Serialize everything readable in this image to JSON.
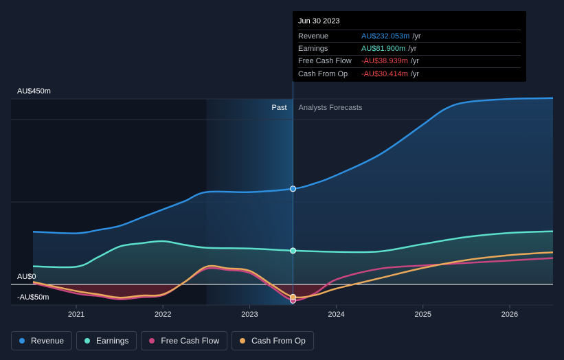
{
  "colors": {
    "revenue": "#2d8fe0",
    "earnings": "#5ce0cc",
    "free_cash_flow": "#c9457f",
    "cash_from_op": "#e9a85a",
    "negative": "#f04a4a"
  },
  "tooltip": {
    "date": "Jun 30 2023",
    "rows": [
      {
        "name": "Revenue",
        "value": "AU$232.053m",
        "unit": "/yr",
        "color": "#2d8fe0"
      },
      {
        "name": "Earnings",
        "value": "AU$81.900m",
        "unit": "/yr",
        "color": "#5ce0cc"
      },
      {
        "name": "Free Cash Flow",
        "value": "-AU$38.939m",
        "unit": "/yr",
        "color": "#f04a4a"
      },
      {
        "name": "Cash From Op",
        "value": "-AU$30.414m",
        "unit": "/yr",
        "color": "#f04a4a"
      }
    ]
  },
  "legend": [
    {
      "label": "Revenue",
      "color": "#2d8fe0"
    },
    {
      "label": "Earnings",
      "color": "#5ce0cc"
    },
    {
      "label": "Free Cash Flow",
      "color": "#c9457f"
    },
    {
      "label": "Cash From Op",
      "color": "#e9a85a"
    }
  ],
  "chart_data": {
    "type": "line",
    "title": "",
    "xlabel": "",
    "ylabel": "",
    "y_unit": "AU$ m",
    "ylim": [
      -50,
      450
    ],
    "xlim": [
      2020.5,
      2026.5
    ],
    "y_tick_labels": [
      {
        "value": 450,
        "label": "AU$450m"
      },
      {
        "value": 0,
        "label": "AU$0"
      },
      {
        "value": -50,
        "label": "-AU$50m"
      }
    ],
    "x_ticks": [
      {
        "value": 2021,
        "label": "2021"
      },
      {
        "value": 2022,
        "label": "2022"
      },
      {
        "value": 2023,
        "label": "2023"
      },
      {
        "value": 2024,
        "label": "2024"
      },
      {
        "value": 2025,
        "label": "2025"
      },
      {
        "value": 2026,
        "label": "2026"
      }
    ],
    "past_label": "Past",
    "forecast_label": "Analysts Forecasts",
    "past_highlight_start": 2022.5,
    "divider_x": 2023.5,
    "series": [
      {
        "name": "Revenue",
        "key": "revenue",
        "x": [
          2020.5,
          2021.0,
          2021.25,
          2021.5,
          2021.75,
          2022.0,
          2022.25,
          2022.5,
          2023.0,
          2023.5,
          2023.75,
          2024.0,
          2024.5,
          2025.0,
          2025.25,
          2025.5,
          2026.0,
          2026.5
        ],
        "values": [
          128,
          124,
          132,
          142,
          162,
          182,
          202,
          224,
          224,
          232,
          245,
          265,
          315,
          388,
          425,
          442,
          450,
          452
        ]
      },
      {
        "name": "Earnings",
        "key": "earnings",
        "x": [
          2020.5,
          2021.0,
          2021.25,
          2021.5,
          2021.75,
          2022.0,
          2022.25,
          2022.5,
          2023.0,
          2023.5,
          2024.0,
          2024.5,
          2025.0,
          2025.5,
          2026.0,
          2026.5
        ],
        "values": [
          44,
          43,
          66,
          92,
          100,
          105,
          96,
          89,
          87,
          82,
          79,
          80,
          98,
          115,
          125,
          129
        ]
      },
      {
        "name": "Free Cash Flow",
        "key": "free_cash_flow",
        "x": [
          2020.5,
          2021.0,
          2021.25,
          2021.5,
          2021.75,
          2022.0,
          2022.25,
          2022.5,
          2022.75,
          2023.0,
          2023.25,
          2023.5,
          2023.75,
          2024.0,
          2024.5,
          2025.0,
          2025.5,
          2026.0,
          2026.5
        ],
        "values": [
          4,
          -22,
          -28,
          -36,
          -31,
          -26,
          6,
          38,
          35,
          28,
          -6,
          -38,
          -22,
          12,
          38,
          46,
          52,
          58,
          64
        ]
      },
      {
        "name": "Cash From Op",
        "key": "cash_from_op",
        "x": [
          2020.5,
          2021.0,
          2021.25,
          2021.5,
          2021.75,
          2022.0,
          2022.25,
          2022.5,
          2022.75,
          2023.0,
          2023.25,
          2023.5,
          2023.75,
          2024.0,
          2024.5,
          2025.0,
          2025.5,
          2026.0,
          2026.5
        ],
        "values": [
          6,
          -16,
          -24,
          -32,
          -27,
          -24,
          6,
          43,
          39,
          33,
          0,
          -30,
          -26,
          -10,
          15,
          40,
          59,
          71,
          78
        ]
      }
    ],
    "highlight_points": [
      {
        "series": "revenue",
        "x": 2023.5,
        "y": 232.053
      },
      {
        "series": "earnings",
        "x": 2023.5,
        "y": 81.9
      },
      {
        "series": "free_cash_flow",
        "x": 2023.5,
        "y": -38.939
      },
      {
        "series": "cash_from_op",
        "x": 2023.5,
        "y": -30.414
      }
    ]
  }
}
